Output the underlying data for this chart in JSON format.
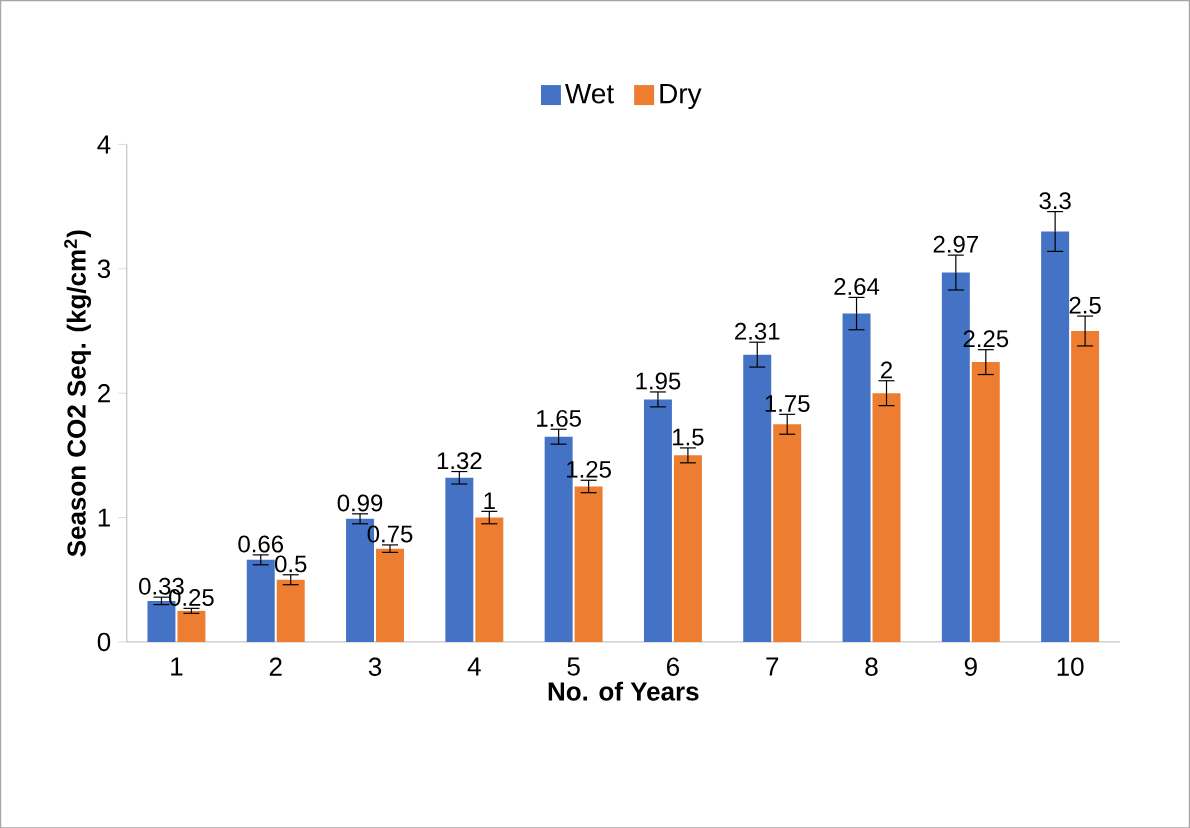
{
  "chart_data": {
    "type": "bar",
    "xlabel": "No. of Years",
    "ylabel": "Season CO2 Seq. (kg/cm$^{2}$)",
    "categories": [
      "1",
      "2",
      "3",
      "4",
      "5",
      "6",
      "7",
      "8",
      "9",
      "10"
    ],
    "series": [
      {
        "name": "Wet",
        "color": "#4472c4",
        "values": [
          0.33,
          0.66,
          0.99,
          1.32,
          1.65,
          1.95,
          2.31,
          2.64,
          2.97,
          3.3
        ],
        "errors": [
          0.03,
          0.04,
          0.04,
          0.05,
          0.06,
          0.06,
          0.1,
          0.13,
          0.14,
          0.16
        ]
      },
      {
        "name": "Dry",
        "color": "#ed7d31",
        "values": [
          0.25,
          0.5,
          0.75,
          1,
          1.25,
          1.5,
          1.75,
          2,
          2.25,
          2.5
        ],
        "errors": [
          0.02,
          0.04,
          0.03,
          0.05,
          0.05,
          0.06,
          0.08,
          0.1,
          0.1,
          0.12
        ]
      }
    ],
    "ylim": [
      0,
      4
    ],
    "yticks": [
      0,
      1,
      2,
      3,
      4
    ],
    "data_labels": true,
    "legend": "top"
  }
}
